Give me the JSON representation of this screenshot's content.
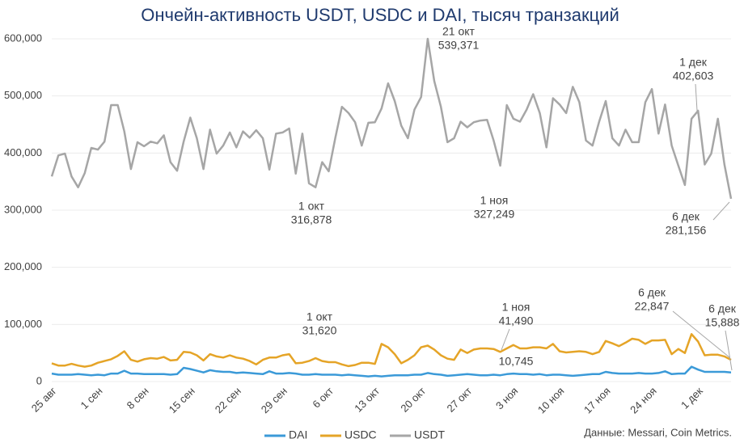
{
  "chart_data": {
    "type": "line",
    "title": "Ончейн-активность USDT, USDC и DAI, тысяч транзакций",
    "source": "Данные: Messari, Coin Metrics.",
    "categories": [
      "25 авг",
      null,
      null,
      null,
      null,
      null,
      null,
      "1 сен",
      null,
      null,
      null,
      null,
      null,
      null,
      "8 сен",
      null,
      null,
      null,
      null,
      null,
      null,
      "15 сен",
      null,
      null,
      null,
      null,
      null,
      null,
      "22 сен",
      null,
      null,
      null,
      null,
      null,
      null,
      "29 сен",
      null,
      null,
      null,
      null,
      null,
      null,
      "6 окт",
      null,
      null,
      null,
      null,
      null,
      null,
      "13 окт",
      null,
      null,
      null,
      null,
      null,
      null,
      "20 окт",
      null,
      null,
      null,
      null,
      null,
      null,
      "27 окт",
      null,
      null,
      null,
      null,
      null,
      null,
      "3 ноя",
      null,
      null,
      null,
      null,
      null,
      null,
      "10 ноя",
      null,
      null,
      null,
      null,
      null,
      null,
      "17 ноя",
      null,
      null,
      null,
      null,
      null,
      null,
      "24 ноя",
      null,
      null,
      null,
      null,
      null,
      null,
      "1 дек",
      null,
      null,
      null,
      null,
      null
    ],
    "series": [
      {
        "name": "DAI",
        "color": "#3b9ad8",
        "values": [
          14000,
          12000,
          12000,
          12000,
          13000,
          12000,
          11000,
          12000,
          11000,
          14000,
          14000,
          19000,
          14000,
          14000,
          13000,
          13000,
          13000,
          13000,
          12000,
          13000,
          24000,
          22000,
          19000,
          16000,
          20000,
          18000,
          17000,
          17000,
          15000,
          16000,
          15000,
          14000,
          13000,
          18000,
          14000,
          14000,
          15000,
          14000,
          12000,
          12000,
          13000,
          12000,
          12000,
          12000,
          11000,
          12000,
          11000,
          10000,
          9000,
          10000,
          9000,
          10000,
          11000,
          11000,
          11000,
          12000,
          12000,
          15000,
          13000,
          12000,
          10000,
          11000,
          12000,
          13000,
          12000,
          11000,
          11000,
          12000,
          11000,
          13000,
          14000,
          13000,
          13000,
          12000,
          13000,
          11000,
          12000,
          12000,
          11000,
          10000,
          11000,
          12000,
          13000,
          13000,
          17000,
          15000,
          14000,
          14000,
          14000,
          15000,
          14000,
          14000,
          15000,
          18000,
          13000,
          14000,
          14000,
          26000,
          21000,
          17000,
          17000,
          17000,
          17000,
          16000
        ]
      },
      {
        "name": "USDC",
        "color": "#e5a427",
        "values": [
          32000,
          28000,
          28000,
          31000,
          28000,
          26000,
          28000,
          33000,
          36000,
          39000,
          45000,
          53000,
          38000,
          35000,
          39000,
          41000,
          40000,
          43000,
          37000,
          38000,
          52000,
          51000,
          46000,
          37000,
          48000,
          44000,
          42000,
          46000,
          42000,
          40000,
          36000,
          30000,
          38000,
          42000,
          42000,
          46000,
          48000,
          32000,
          33000,
          36000,
          41000,
          36000,
          34000,
          34000,
          30000,
          27000,
          29000,
          33000,
          33000,
          31000,
          66000,
          60000,
          48000,
          32000,
          38000,
          46000,
          60000,
          63000,
          56000,
          46000,
          40000,
          38000,
          56000,
          50000,
          56000,
          58000,
          58000,
          57000,
          52000,
          58000,
          64000,
          58000,
          58000,
          60000,
          60000,
          58000,
          66000,
          53000,
          51000,
          52000,
          53000,
          52000,
          48000,
          52000,
          71000,
          67000,
          62000,
          68000,
          75000,
          73000,
          66000,
          72000,
          72000,
          73000,
          48000,
          57000,
          50000,
          83000,
          70000,
          46000,
          47000,
          47000,
          44000,
          38000
        ]
      },
      {
        "name": "USDT",
        "color": "#a6a6a6",
        "values": [
          359000,
          396000,
          399000,
          359000,
          340000,
          365000,
          409000,
          406000,
          420000,
          484000,
          484000,
          438000,
          372000,
          419000,
          412000,
          420000,
          417000,
          431000,
          384000,
          369000,
          420000,
          462000,
          426000,
          372000,
          441000,
          399000,
          413000,
          436000,
          410000,
          438000,
          427000,
          440000,
          426000,
          371000,
          434000,
          436000,
          443000,
          364000,
          434000,
          347000,
          340000,
          384000,
          368000,
          427000,
          481000,
          470000,
          454000,
          413000,
          453000,
          454000,
          478000,
          522000,
          491000,
          448000,
          426000,
          476000,
          498000,
          600000,
          526000,
          481000,
          419000,
          426000,
          455000,
          445000,
          454000,
          457000,
          458000,
          422000,
          378000,
          484000,
          460000,
          455000,
          476000,
          503000,
          470000,
          410000,
          496000,
          485000,
          470000,
          516000,
          489000,
          422000,
          413000,
          455000,
          491000,
          426000,
          413000,
          441000,
          419000,
          419000,
          489000,
          512000,
          434000,
          485000,
          413000,
          378000,
          344000,
          460000,
          474000,
          380000,
          399000,
          460000,
          380000,
          320000
        ]
      }
    ],
    "annotations": [
      {
        "lines": [
          "21 окт",
          "539,371"
        ]
      },
      {
        "lines": [
          "1 окт",
          "316,878"
        ]
      },
      {
        "lines": [
          "1 ноя",
          "327,249"
        ]
      },
      {
        "lines": [
          "1 дек",
          "402,603"
        ]
      },
      {
        "lines": [
          "6 дек",
          "281,156"
        ]
      },
      {
        "lines": [
          "1 окт",
          "31,620"
        ]
      },
      {
        "lines": [
          "1 ноя",
          "41,490"
        ]
      },
      {
        "lines": [
          "10,745"
        ]
      },
      {
        "lines": [
          "6 дек",
          "22,847"
        ]
      },
      {
        "lines": [
          "6 дек",
          "15,888"
        ]
      }
    ],
    "ylim": [
      0,
      600000
    ],
    "yticks": [
      0,
      {
        "value": 100000,
        "label": "100,000"
      },
      {
        "value": 200000,
        "label": "200,000"
      },
      {
        "value": 300000,
        "label": "300,000"
      },
      {
        "value": 400000,
        "label": "400,000"
      },
      {
        "value": 500000,
        "label": "500,000"
      },
      {
        "value": 600000,
        "label": "600,000"
      }
    ],
    "grid": true
  }
}
